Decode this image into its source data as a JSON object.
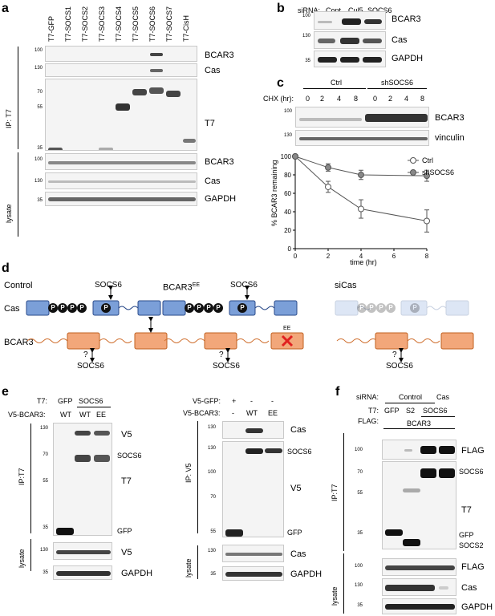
{
  "panel_a": {
    "letter": "a",
    "lanes": [
      "T7-GFP",
      "T7-SOCS1",
      "T7-SOCS2",
      "T7-SOCS3",
      "T7-SOCS4",
      "T7-SOCS5",
      "T7-SOCS6",
      "T7-SOCS7",
      "T7-CisH"
    ],
    "ip_label": "IP: T7",
    "lysate_label": "lysate",
    "blots": {
      "bcar3": "BCAR3",
      "cas": "Cas",
      "t7": "T7",
      "bcar3_lys": "BCAR3",
      "cas_lys": "Cas",
      "gapdh": "GAPDH"
    },
    "mw": {
      "m100": "100",
      "m130": "130",
      "m70": "70",
      "m55": "55",
      "m35": "35",
      "l100": "100",
      "l130": "130",
      "l35": "35"
    }
  },
  "panel_b": {
    "letter": "b",
    "sirna_label": "siRNA:",
    "lanes": [
      "Cont",
      "Cul5",
      "SOCS6"
    ],
    "blots": {
      "bcar3": "BCAR3",
      "cas": "Cas",
      "gapdh": "GAPDH"
    },
    "mw": {
      "m100": "100",
      "m130": "130",
      "m35": "35"
    }
  },
  "panel_c": {
    "letter": "c",
    "groups": [
      "Ctrl",
      "shSOCS6"
    ],
    "chx_label": "CHX (hr):",
    "times": [
      "0",
      "2",
      "4",
      "8",
      "0",
      "2",
      "4",
      "8"
    ],
    "blots": {
      "bcar3": "BCAR3",
      "vinculin": "vinculin"
    },
    "mw": {
      "m100": "100",
      "m130": "130"
    },
    "chart_data": {
      "type": "line",
      "xlabel": "time (hr)",
      "ylabel": "% BCAR3 remaining",
      "xlim": [
        0,
        8
      ],
      "ylim": [
        0,
        100
      ],
      "xticks": [
        "0",
        "2",
        "4",
        "6",
        "8"
      ],
      "yticks": [
        "0",
        "20",
        "40",
        "60",
        "80",
        "100"
      ],
      "x": [
        0,
        2,
        4,
        8
      ],
      "series": [
        {
          "name": "Ctrl",
          "values": [
            100,
            67,
            43,
            30
          ],
          "errors": [
            0,
            6,
            10,
            12
          ],
          "color": "#ffffff"
        },
        {
          "name": "shSOCS6",
          "values": [
            100,
            88,
            80,
            79
          ],
          "errors": [
            0,
            4,
            5,
            6
          ],
          "color": "#888888"
        }
      ],
      "legend": "top-right"
    }
  },
  "panel_d": {
    "letter": "d",
    "titles": {
      "control": "Control",
      "ee": "BCAR3",
      "ee_sup": "EE",
      "sicas": "siCas"
    },
    "cas": "Cas",
    "bcar3": "BCAR3",
    "socs6": "SOCS6",
    "q": "?",
    "p": "P",
    "ee_tag": "EE"
  },
  "panel_e": {
    "letter": "e",
    "left": {
      "t7_label": "T7:",
      "v5_label": "V5-BCAR3:",
      "t7_values": [
        "GFP",
        "SOCS6"
      ],
      "v5_values": [
        "WT",
        "WT",
        "EE"
      ],
      "ip_label": "IP:T7",
      "lysate_label": "lysate",
      "blots": {
        "v5": "V5",
        "t7": "T7",
        "v5_lys": "V5",
        "gapdh": "GAPDH"
      },
      "annotations": {
        "socs6": "SOCS6",
        "gfp": "GFP"
      },
      "mw": {
        "m130": "130",
        "m70": "70",
        "m55": "55",
        "m35": "35",
        "l130": "130",
        "l35": "35"
      }
    },
    "right": {
      "gfp_label": "V5-GFP:",
      "bcar3_label": "V5-BCAR3:",
      "gfp_values": [
        "+",
        "-",
        "-"
      ],
      "bcar3_values": [
        "-",
        "WT",
        "EE"
      ],
      "ip_label": "IP: V5",
      "lysate_label": "lysate",
      "blots": {
        "cas": "Cas",
        "v5": "V5",
        "cas_lys": "Cas",
        "gapdh": "GAPDH"
      },
      "annotations": {
        "socs6": "SOCS6",
        "gfp": "GFP"
      },
      "mw": {
        "m130": "130",
        "m100": "100",
        "m70": "70",
        "m55": "55",
        "l130": "130",
        "l35": "35"
      }
    }
  },
  "panel_f": {
    "letter": "f",
    "sirna_label": "siRNA:",
    "sirna_values": [
      "Control",
      "Cas"
    ],
    "t7_label": "T7:",
    "t7_values": [
      "GFP",
      "S2",
      "SOCS6"
    ],
    "flag_label": "FLAG:",
    "flag_value": "BCAR3",
    "ip_label": "IP:T7",
    "lysate_label": "lysate",
    "blots": {
      "flag": "FLAG",
      "t7": "T7",
      "flag_lys": "FLAG",
      "cas_lys": "Cas",
      "gapdh": "GAPDH"
    },
    "annotations": {
      "socs6": "SOCS6",
      "gfp": "GFP",
      "socs2": "SOCS2"
    },
    "mw": {
      "m100": "100",
      "m70": "70",
      "m55": "55",
      "m35": "35",
      "l100": "100",
      "l130": "130",
      "l35": "35"
    }
  }
}
